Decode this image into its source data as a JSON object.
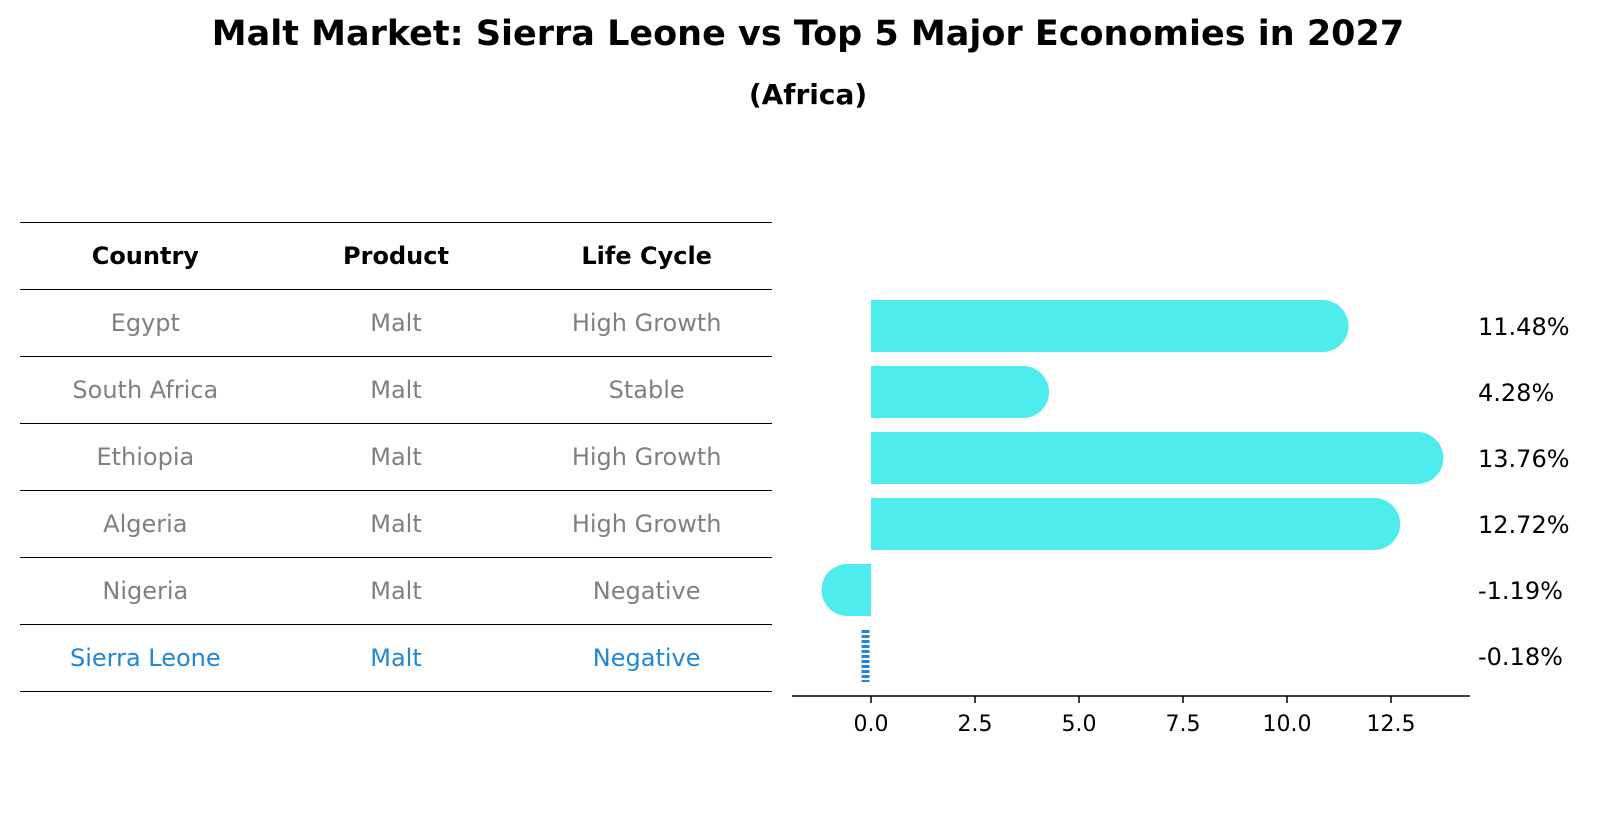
{
  "title": "Malt Market: Sierra Leone vs Top 5 Major Economies in 2027",
  "subtitle": "(Africa)",
  "table": {
    "headers": [
      "Country",
      "Product",
      "Life Cycle"
    ],
    "rows": [
      {
        "country": "Egypt",
        "product": "Malt",
        "life_cycle": "High Growth"
      },
      {
        "country": "South Africa",
        "product": "Malt",
        "life_cycle": "Stable"
      },
      {
        "country": "Ethiopia",
        "product": "Malt",
        "life_cycle": "High Growth"
      },
      {
        "country": "Algeria",
        "product": "Malt",
        "life_cycle": "High Growth"
      },
      {
        "country": "Nigeria",
        "product": "Malt",
        "life_cycle": "Negative"
      },
      {
        "country": "Sierra Leone",
        "product": "Malt",
        "life_cycle": "Negative"
      }
    ]
  },
  "colors": {
    "bar": "#4eecec",
    "highlight": "#1f87d6",
    "muted_text": "#808080"
  },
  "chart_data": {
    "type": "bar",
    "orientation": "horizontal",
    "categories": [
      "Egypt",
      "South Africa",
      "Ethiopia",
      "Algeria",
      "Nigeria",
      "Sierra Leone"
    ],
    "values": [
      11.48,
      4.28,
      13.76,
      12.72,
      -1.19,
      -0.18
    ],
    "value_labels": [
      "11.48%",
      "4.28%",
      "13.76%",
      "12.72%",
      "-1.19%",
      "-0.18%"
    ],
    "xlim": [
      -1.9,
      14.4
    ],
    "xticks": [
      0.0,
      2.5,
      5.0,
      7.5,
      10.0,
      12.5
    ],
    "xtick_labels": [
      "0.0",
      "2.5",
      "5.0",
      "7.5",
      "10.0",
      "12.5"
    ],
    "highlight_category": "Sierra Leone",
    "xlabel": "",
    "ylabel": ""
  }
}
